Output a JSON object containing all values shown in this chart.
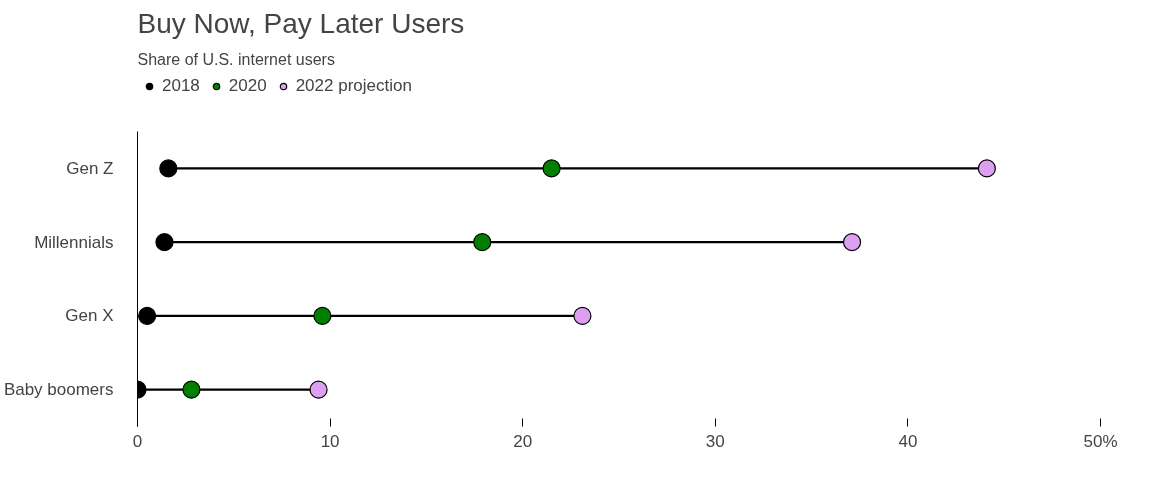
{
  "chart_data": {
    "type": "scatter",
    "title": "Buy Now, Pay Later Users",
    "subtitle": "Share of U.S. internet users",
    "orientation": "horizontal",
    "categories": [
      "Gen Z",
      "Millennials",
      "Gen X",
      "Baby boomers"
    ],
    "series": [
      {
        "name": "2018",
        "color": "#000000",
        "values": [
          1.6,
          1.4,
          0.5,
          0.0
        ]
      },
      {
        "name": "2020",
        "color": "#008000",
        "values": [
          21.5,
          17.9,
          9.6,
          2.8
        ]
      },
      {
        "name": "2022 projection",
        "color": "#dda0f0",
        "values": [
          44.1,
          37.1,
          23.1,
          9.4
        ]
      }
    ],
    "xlim": [
      0,
      50
    ],
    "xticks": [
      0,
      10,
      20,
      30,
      40,
      {
        "value": 50,
        "label": "50%"
      }
    ],
    "grid": false,
    "legend": "top left",
    "marker": "circle"
  }
}
